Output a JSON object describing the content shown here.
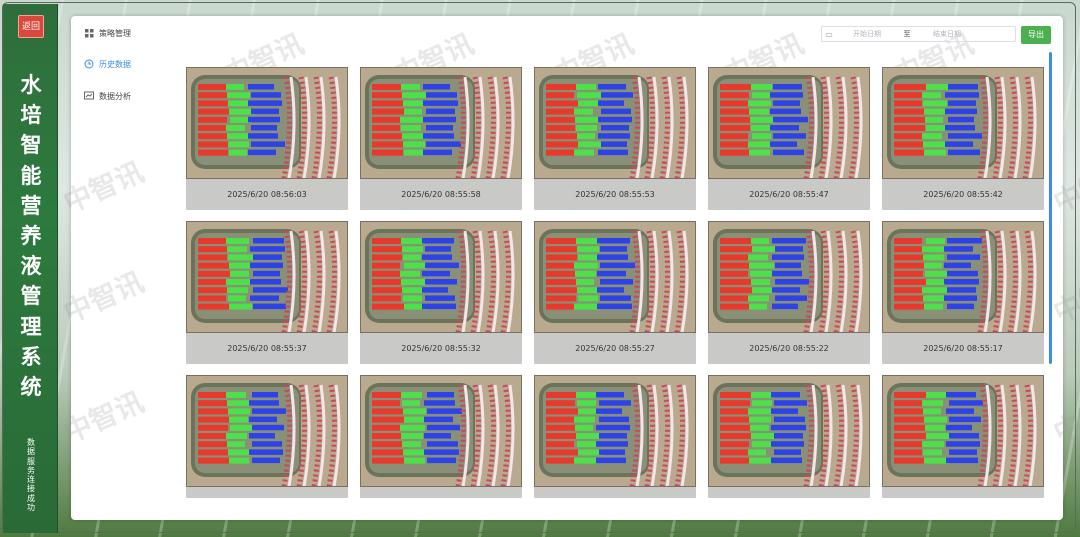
{
  "sidebar": {
    "back_label": "返回",
    "title_chars": [
      "水",
      "培",
      "智",
      "能",
      "营",
      "养",
      "液",
      "管",
      "理",
      "系",
      "统"
    ],
    "status_chars": [
      "数",
      "据",
      "服",
      "务",
      "连",
      "接",
      "成",
      "功"
    ]
  },
  "menu": {
    "items": [
      {
        "label": "策略管理",
        "icon": "grid-icon",
        "active": false
      },
      {
        "label": "历史数据",
        "icon": "history-icon",
        "active": true
      },
      {
        "label": "数据分析",
        "icon": "chart-icon",
        "active": false
      }
    ]
  },
  "toolbar": {
    "start_placeholder": "开始日期",
    "separator": "至",
    "end_placeholder": "结束日期",
    "export_label": "导出"
  },
  "watermark": "中智讯",
  "colors": {
    "rail": "#2c7a3e",
    "active": "#3c8be6",
    "export": "#4caf50",
    "back": "#d9483b"
  },
  "records": [
    {
      "timestamp": "2025/6/20 08:56:03"
    },
    {
      "timestamp": "2025/6/20 08:55:58"
    },
    {
      "timestamp": "2025/6/20 08:55:53"
    },
    {
      "timestamp": "2025/6/20 08:55:47"
    },
    {
      "timestamp": "2025/6/20 08:55:42"
    },
    {
      "timestamp": "2025/6/20 08:55:37"
    },
    {
      "timestamp": "2025/6/20 08:55:32"
    },
    {
      "timestamp": "2025/6/20 08:55:27"
    },
    {
      "timestamp": "2025/6/20 08:55:22"
    },
    {
      "timestamp": "2025/6/20 08:55:17"
    },
    {
      "timestamp": ""
    },
    {
      "timestamp": ""
    },
    {
      "timestamp": ""
    },
    {
      "timestamp": ""
    },
    {
      "timestamp": ""
    }
  ]
}
